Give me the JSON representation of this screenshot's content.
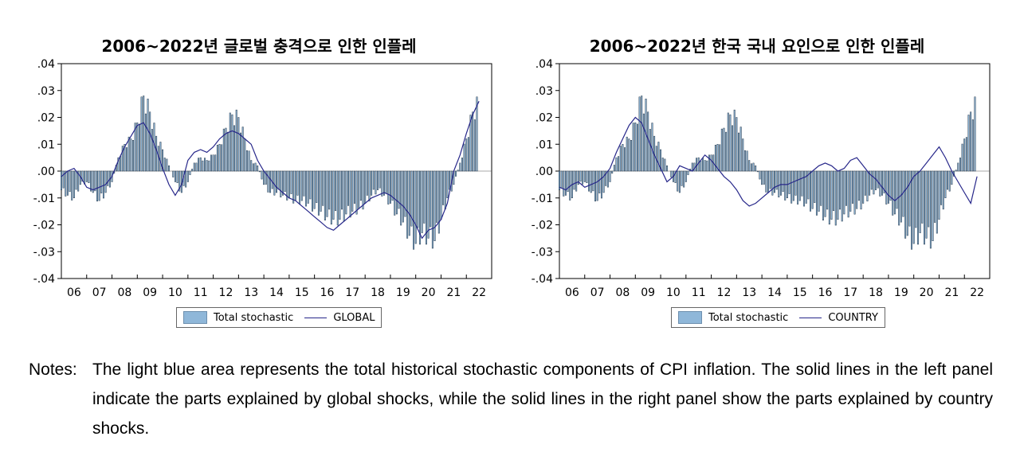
{
  "colors": {
    "bars": "#8fb7d9",
    "bar_edge": "#1f3347",
    "line": "#27278a",
    "axis": "#000000"
  },
  "chart_data": [
    {
      "type": "bar",
      "title": "2006~2022년 글로벌 충격으로 인한 인플레",
      "xlabel": "",
      "ylabel": "",
      "ylim": [
        -0.04,
        0.04
      ],
      "ytick_labels": [
        ".04",
        ".03",
        ".02",
        ".01",
        ".00",
        "-.01",
        "-.02",
        "-.03",
        "-.04"
      ],
      "ytick_values": [
        0.04,
        0.03,
        0.02,
        0.01,
        0.0,
        -0.01,
        -0.02,
        -0.03,
        -0.04
      ],
      "xtick_labels": [
        "06",
        "07",
        "08",
        "09",
        "10",
        "11",
        "12",
        "13",
        "14",
        "15",
        "16",
        "17",
        "18",
        "19",
        "20",
        "21",
        "22"
      ],
      "legend": [
        "Total stochastic",
        "GLOBAL"
      ],
      "series": [
        {
          "name": "Total stochastic",
          "type": "bar",
          "x_start": 2005.5,
          "x_step": 0.25,
          "values": [
            -0.007,
            -0.009,
            -0.01,
            -0.005,
            -0.004,
            -0.008,
            -0.011,
            -0.008,
            -0.004,
            0.005,
            0.01,
            0.012,
            0.018,
            0.028,
            0.022,
            0.013,
            0.008,
            0.002,
            -0.004,
            -0.008,
            -0.004,
            0.003,
            0.005,
            0.004,
            0.006,
            0.01,
            0.016,
            0.021,
            0.02,
            0.012,
            0.004,
            0.002,
            -0.005,
            -0.008,
            -0.008,
            -0.009,
            -0.01,
            -0.011,
            -0.011,
            -0.012,
            -0.014,
            -0.015,
            -0.017,
            -0.018,
            -0.018,
            -0.016,
            -0.015,
            -0.014,
            -0.012,
            -0.009,
            -0.007,
            -0.009,
            -0.012,
            -0.016,
            -0.019,
            -0.024,
            -0.027,
            -0.023,
            -0.025,
            -0.026,
            -0.018,
            -0.01,
            -0.005,
            0.003,
            0.012,
            0.022,
            0.026
          ]
        },
        {
          "name": "GLOBAL",
          "type": "line",
          "x_start": 2005.5,
          "x_step": 0.25,
          "values": [
            -0.002,
            0.0,
            0.001,
            -0.002,
            -0.006,
            -0.007,
            -0.006,
            -0.005,
            -0.002,
            0.004,
            0.009,
            0.013,
            0.017,
            0.018,
            0.014,
            0.008,
            0.001,
            -0.005,
            -0.009,
            -0.005,
            0.004,
            0.007,
            0.008,
            0.007,
            0.009,
            0.012,
            0.014,
            0.015,
            0.014,
            0.012,
            0.01,
            0.004,
            0.0,
            -0.003,
            -0.006,
            -0.008,
            -0.01,
            -0.011,
            -0.013,
            -0.015,
            -0.017,
            -0.019,
            -0.021,
            -0.022,
            -0.02,
            -0.018,
            -0.016,
            -0.014,
            -0.012,
            -0.01,
            -0.009,
            -0.008,
            -0.009,
            -0.011,
            -0.013,
            -0.016,
            -0.02,
            -0.025,
            -0.022,
            -0.021,
            -0.018,
            -0.012,
            0.0,
            0.006,
            0.014,
            0.021,
            0.026
          ]
        }
      ]
    },
    {
      "type": "bar",
      "title": "2006~2022년 한국 국내 요인으로 인한 인플레",
      "xlabel": "",
      "ylabel": "",
      "ylim": [
        -0.04,
        0.04
      ],
      "ytick_labels": [
        ".04",
        ".03",
        ".02",
        ".01",
        ".00",
        "-.01",
        "-.02",
        "-.03",
        "-.04"
      ],
      "ytick_values": [
        0.04,
        0.03,
        0.02,
        0.01,
        0.0,
        -0.01,
        -0.02,
        -0.03,
        -0.04
      ],
      "xtick_labels": [
        "06",
        "07",
        "08",
        "09",
        "10",
        "11",
        "12",
        "13",
        "14",
        "15",
        "16",
        "17",
        "18",
        "19",
        "20",
        "21",
        "22"
      ],
      "legend": [
        "Total stochastic",
        "COUNTRY"
      ],
      "series": [
        {
          "name": "Total stochastic",
          "type": "bar",
          "x_start": 2005.5,
          "x_step": 0.25,
          "values": [
            -0.007,
            -0.009,
            -0.01,
            -0.005,
            -0.004,
            -0.008,
            -0.011,
            -0.008,
            -0.004,
            0.005,
            0.01,
            0.012,
            0.018,
            0.028,
            0.022,
            0.013,
            0.008,
            0.002,
            -0.004,
            -0.008,
            -0.004,
            0.003,
            0.005,
            0.004,
            0.006,
            0.01,
            0.016,
            0.021,
            0.02,
            0.012,
            0.004,
            0.002,
            -0.005,
            -0.008,
            -0.008,
            -0.009,
            -0.01,
            -0.011,
            -0.011,
            -0.012,
            -0.014,
            -0.015,
            -0.017,
            -0.018,
            -0.018,
            -0.016,
            -0.015,
            -0.014,
            -0.012,
            -0.009,
            -0.007,
            -0.009,
            -0.012,
            -0.016,
            -0.019,
            -0.024,
            -0.027,
            -0.023,
            -0.025,
            -0.026,
            -0.018,
            -0.01,
            -0.005,
            0.003,
            0.012,
            0.022,
            0.026
          ]
        },
        {
          "name": "COUNTRY",
          "type": "line",
          "x_start": 2005.5,
          "x_step": 0.25,
          "values": [
            -0.006,
            -0.007,
            -0.005,
            -0.004,
            -0.006,
            -0.005,
            -0.004,
            -0.002,
            0.001,
            0.007,
            0.012,
            0.017,
            0.02,
            0.018,
            0.012,
            0.006,
            0.001,
            -0.004,
            -0.002,
            0.002,
            0.001,
            0.0,
            0.003,
            0.006,
            0.004,
            0.001,
            -0.002,
            -0.004,
            -0.007,
            -0.011,
            -0.013,
            -0.012,
            -0.01,
            -0.008,
            -0.006,
            -0.005,
            -0.005,
            -0.004,
            -0.003,
            -0.002,
            0.0,
            0.002,
            0.003,
            0.002,
            0.0,
            0.001,
            0.004,
            0.005,
            0.002,
            -0.001,
            -0.003,
            -0.006,
            -0.009,
            -0.011,
            -0.009,
            -0.006,
            -0.002,
            0.0,
            0.003,
            0.006,
            0.009,
            0.005,
            0.0,
            -0.004,
            -0.008,
            -0.012,
            -0.002
          ]
        }
      ]
    }
  ],
  "notes": {
    "label": "Notes:",
    "text": "The light blue area represents the total historical stochastic components of CPI inflation. The solid lines in the left panel indicate the parts explained by global shocks, while the solid lines in the right panel show the parts explained by country shocks."
  }
}
